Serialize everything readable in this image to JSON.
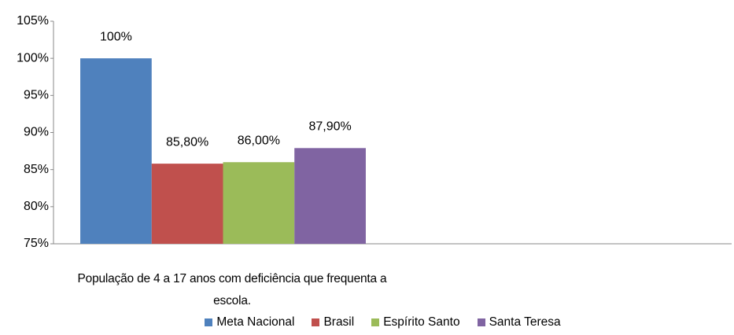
{
  "chart_data": {
    "type": "bar",
    "categories": [
      "População de 4 a 17 anos com deficiência que frequenta a escola.",
      null
    ],
    "series": [
      {
        "name": "Meta Nacional",
        "color": "#4f81bd",
        "values": [
          100,
          null
        ],
        "value_labels": [
          "100%",
          null
        ]
      },
      {
        "name": "Brasil",
        "color": "#c0504d",
        "values": [
          85.8,
          null
        ],
        "value_labels": [
          "85,80%",
          null
        ]
      },
      {
        "name": "Espírito Santo",
        "color": "#9bbb59",
        "values": [
          86.0,
          null
        ],
        "value_labels": [
          "86,00%",
          null
        ]
      },
      {
        "name": "Santa Teresa",
        "color": "#8064a2",
        "values": [
          87.9,
          null
        ],
        "value_labels": [
          "87,90%",
          null
        ]
      }
    ],
    "ylim": [
      75,
      105
    ],
    "yticks": [
      {
        "value": 75,
        "label": "75%"
      },
      {
        "value": 80,
        "label": "80%"
      },
      {
        "value": 85,
        "label": "85%"
      },
      {
        "value": 90,
        "label": "90%"
      },
      {
        "value": 95,
        "label": "95%"
      },
      {
        "value": 100,
        "label": "100%"
      },
      {
        "value": 105,
        "label": "105%"
      }
    ],
    "grid": false,
    "legend": "bottom"
  }
}
